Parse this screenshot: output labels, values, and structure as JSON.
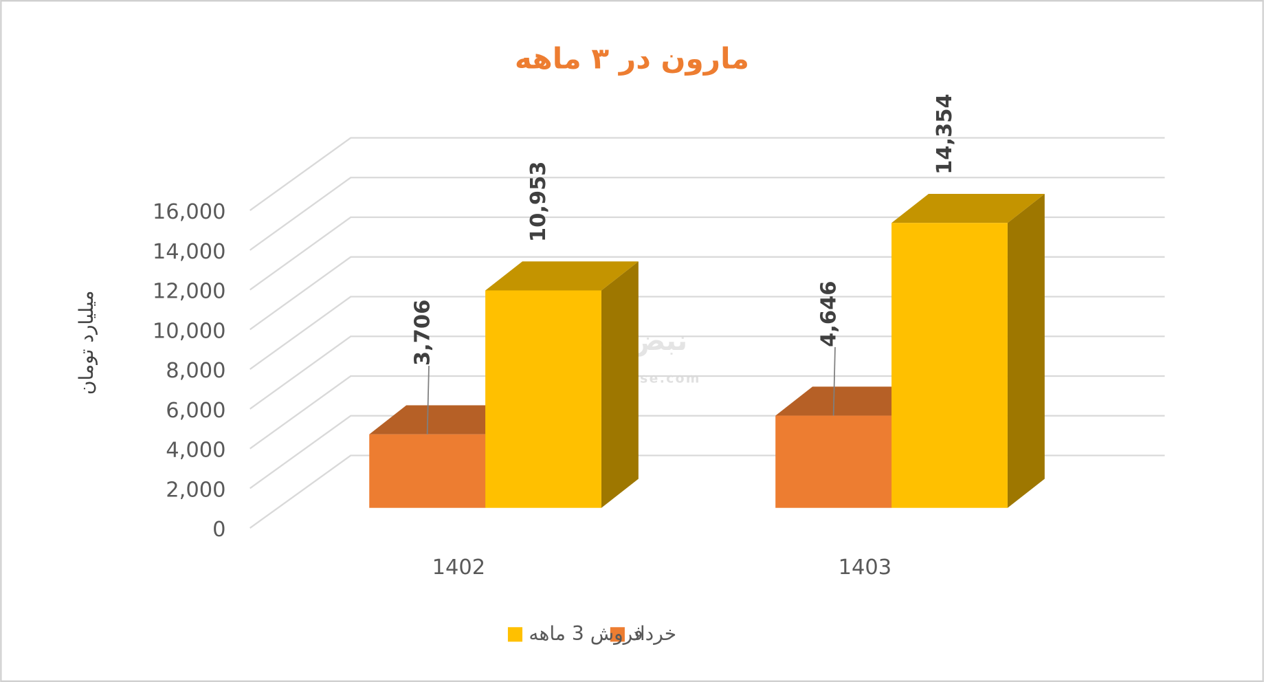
{
  "chart_data": {
    "type": "bar3d",
    "title": "مارون در ۳ ماهه",
    "y_label": "میلیارد تومان",
    "categories": [
      "1402",
      "1403"
    ],
    "series": [
      {
        "name": "خرداد",
        "color": "#ED7D31",
        "values": [
          3706,
          4646
        ],
        "value_labels": [
          "3,706",
          "4,646"
        ]
      },
      {
        "name": "فروش 3 ماهه",
        "color": "#FFC000",
        "values": [
          10953,
          14354
        ],
        "value_labels": [
          "10,953",
          "14,354"
        ]
      }
    ],
    "ylim": [
      0,
      16000
    ],
    "yticks": [
      0,
      {
        "value": 2000,
        "label": "2,000"
      },
      {
        "value": 4000,
        "label": "4,000"
      },
      {
        "value": 6000,
        "label": "6,000"
      },
      {
        "value": 8000,
        "label": "8,000"
      },
      {
        "value": 10000,
        "label": "10,000"
      },
      {
        "value": 12000,
        "label": "12,000"
      },
      {
        "value": 14000,
        "label": "14,000"
      },
      {
        "value": 16000,
        "label": "16,000"
      }
    ],
    "grid": true,
    "legend": "bottom",
    "watermark": "nabzebourse.com",
    "watermark_logo": "نبض بورس"
  }
}
